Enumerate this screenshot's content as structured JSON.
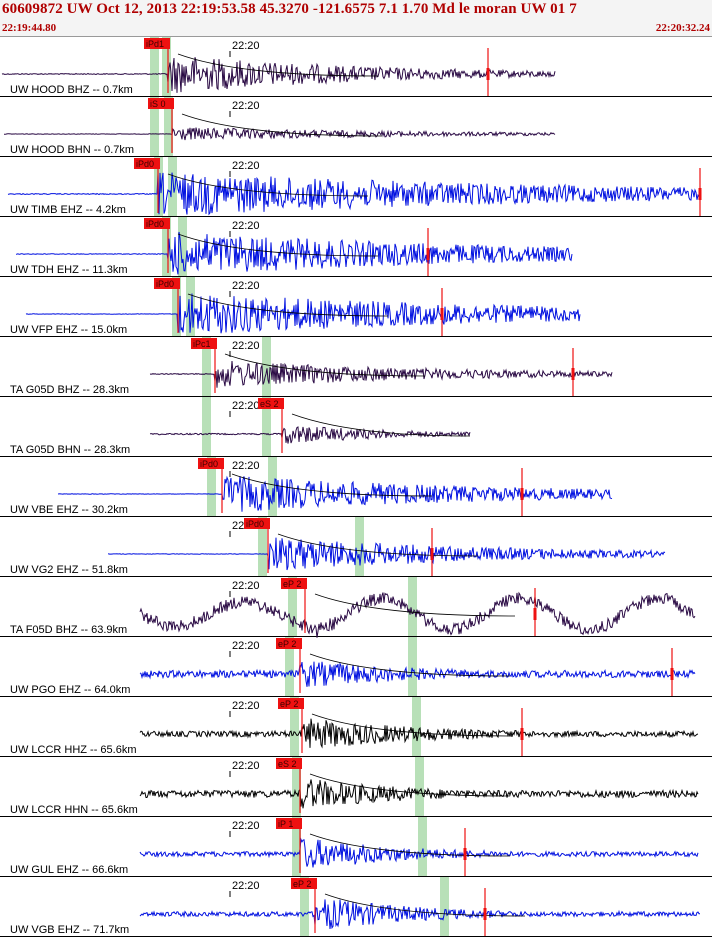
{
  "header": {
    "title": "60609872 UW Oct 12, 2013 22:19:53.58   45.3270 -121.6575  7.1 1.70 Md le moran UW 01   7",
    "start_time": "22:19:44.80",
    "end_time": "22:20:32.24"
  },
  "colors": {
    "pick_band": "#b8e0b8",
    "pick_box": "#ee1111",
    "trace_blue": "#0010e0",
    "trace_purple": "#2a0a44",
    "trace_black": "#000000",
    "theory_curve": "#000000"
  },
  "time_tick_label": "22:20",
  "traces": [
    {
      "label": "UW HOOD BHZ -- 0.7km",
      "pick": "iPd1",
      "color": "purple",
      "amp": 0.85,
      "noise": 0.02,
      "onset": 168,
      "end": 555,
      "bands": [
        150,
        162
      ],
      "burst": 0.18,
      "spike": 488,
      "lp": false
    },
    {
      "label": "UW HOOD BHN -- 0.7km",
      "pick": "iS 0",
      "color": "purple",
      "amp": 0.3,
      "noise": 0.01,
      "onset": 172,
      "end": 555,
      "bands": [
        150,
        164
      ],
      "burst": 0.22,
      "spike": null,
      "lp": false
    },
    {
      "label": "UW TIMB EHZ -- 4.2km",
      "pick": "iPd0",
      "color": "blue",
      "amp": 0.95,
      "noise": 0.02,
      "onset": 158,
      "end": 700,
      "bands": [
        154,
        168
      ],
      "burst": 0.28,
      "spike": 700,
      "lp": false
    },
    {
      "label": "UW TDH EHZ -- 11.3km",
      "pick": "iPd0",
      "color": "blue",
      "amp": 0.95,
      "noise": 0.015,
      "onset": 168,
      "end": 572,
      "bands": [
        162,
        178
      ],
      "burst": 0.3,
      "spike": 428,
      "lp": false
    },
    {
      "label": "UW VFP EHZ -- 15.0km",
      "pick": "iPd0",
      "color": "blue",
      "amp": 0.95,
      "noise": 0.01,
      "onset": 178,
      "end": 580,
      "bands": [
        172,
        186
      ],
      "burst": 0.3,
      "spike": 442,
      "lp": false
    },
    {
      "label": "TA G05D BHZ -- 28.3km",
      "pick": "iPc1",
      "color": "purple",
      "amp": 0.6,
      "noise": 0.02,
      "onset": 215,
      "end": 612,
      "bands": [
        202,
        262
      ],
      "burst": 0.2,
      "spike": 573,
      "lp": false
    },
    {
      "label": "TA G05D BHN -- 28.3km",
      "pick": "eS 2",
      "color": "purple",
      "amp": 0.45,
      "noise": 0.03,
      "onset": 282,
      "end": 470,
      "bands": [
        202,
        262
      ],
      "burst": 0.2,
      "spike": null,
      "lp": false
    },
    {
      "label": "UW VBE EHZ -- 30.2km",
      "pick": "iPd0",
      "color": "blue",
      "amp": 0.8,
      "noise": 0.01,
      "onset": 222,
      "end": 612,
      "bands": [
        207,
        268
      ],
      "burst": 0.25,
      "spike": 522,
      "lp": false
    },
    {
      "label": "UW VG2 EHZ -- 51.8km",
      "pick": "iPd0",
      "color": "blue",
      "amp": 0.75,
      "noise": 0.01,
      "onset": 268,
      "end": 665,
      "bands": [
        258,
        355
      ],
      "burst": 0.2,
      "spike": 432,
      "lp": false
    },
    {
      "label": "TA F05D BHZ -- 63.9km",
      "pick": "eP 2",
      "color": "purple",
      "amp": 0.4,
      "noise": 0.25,
      "onset": 305,
      "end": 695,
      "bands": [
        288,
        408
      ],
      "burst": 0.08,
      "spike": 535,
      "lp": true
    },
    {
      "label": "UW PGO EHZ -- 64.0km",
      "pick": "eP 2",
      "color": "blue",
      "amp": 0.6,
      "noise": 0.15,
      "onset": 300,
      "end": 695,
      "bands": [
        285,
        408
      ],
      "burst": 0.12,
      "spike": 672,
      "lp": false
    },
    {
      "label": "UW LCCR HHZ -- 65.6km",
      "pick": "eP 2",
      "color": "black",
      "amp": 0.7,
      "noise": 0.12,
      "onset": 302,
      "end": 698,
      "bands": [
        290,
        412
      ],
      "burst": 0.12,
      "spike": 522,
      "lp": false
    },
    {
      "label": "UW LCCR HHN -- 65.6km",
      "pick": "eS 2",
      "color": "black",
      "amp": 0.7,
      "noise": 0.15,
      "onset": 300,
      "end": 698,
      "bands": [
        292,
        415
      ],
      "burst": 0.1,
      "spike": null,
      "lp": false
    },
    {
      "label": "UW GUL EHZ -- 66.6km",
      "pick": "iP 1",
      "color": "blue",
      "amp": 0.7,
      "noise": 0.1,
      "onset": 300,
      "end": 698,
      "bands": [
        292,
        418
      ],
      "burst": 0.1,
      "spike": 465,
      "lp": false
    },
    {
      "label": "UW VGB EHZ -- 71.7km",
      "pick": "eP 2",
      "color": "blue",
      "amp": 0.75,
      "noise": 0.1,
      "onset": 315,
      "end": 700,
      "bands": [
        300,
        440
      ],
      "burst": 0.1,
      "spike": 485,
      "lp": false
    }
  ]
}
